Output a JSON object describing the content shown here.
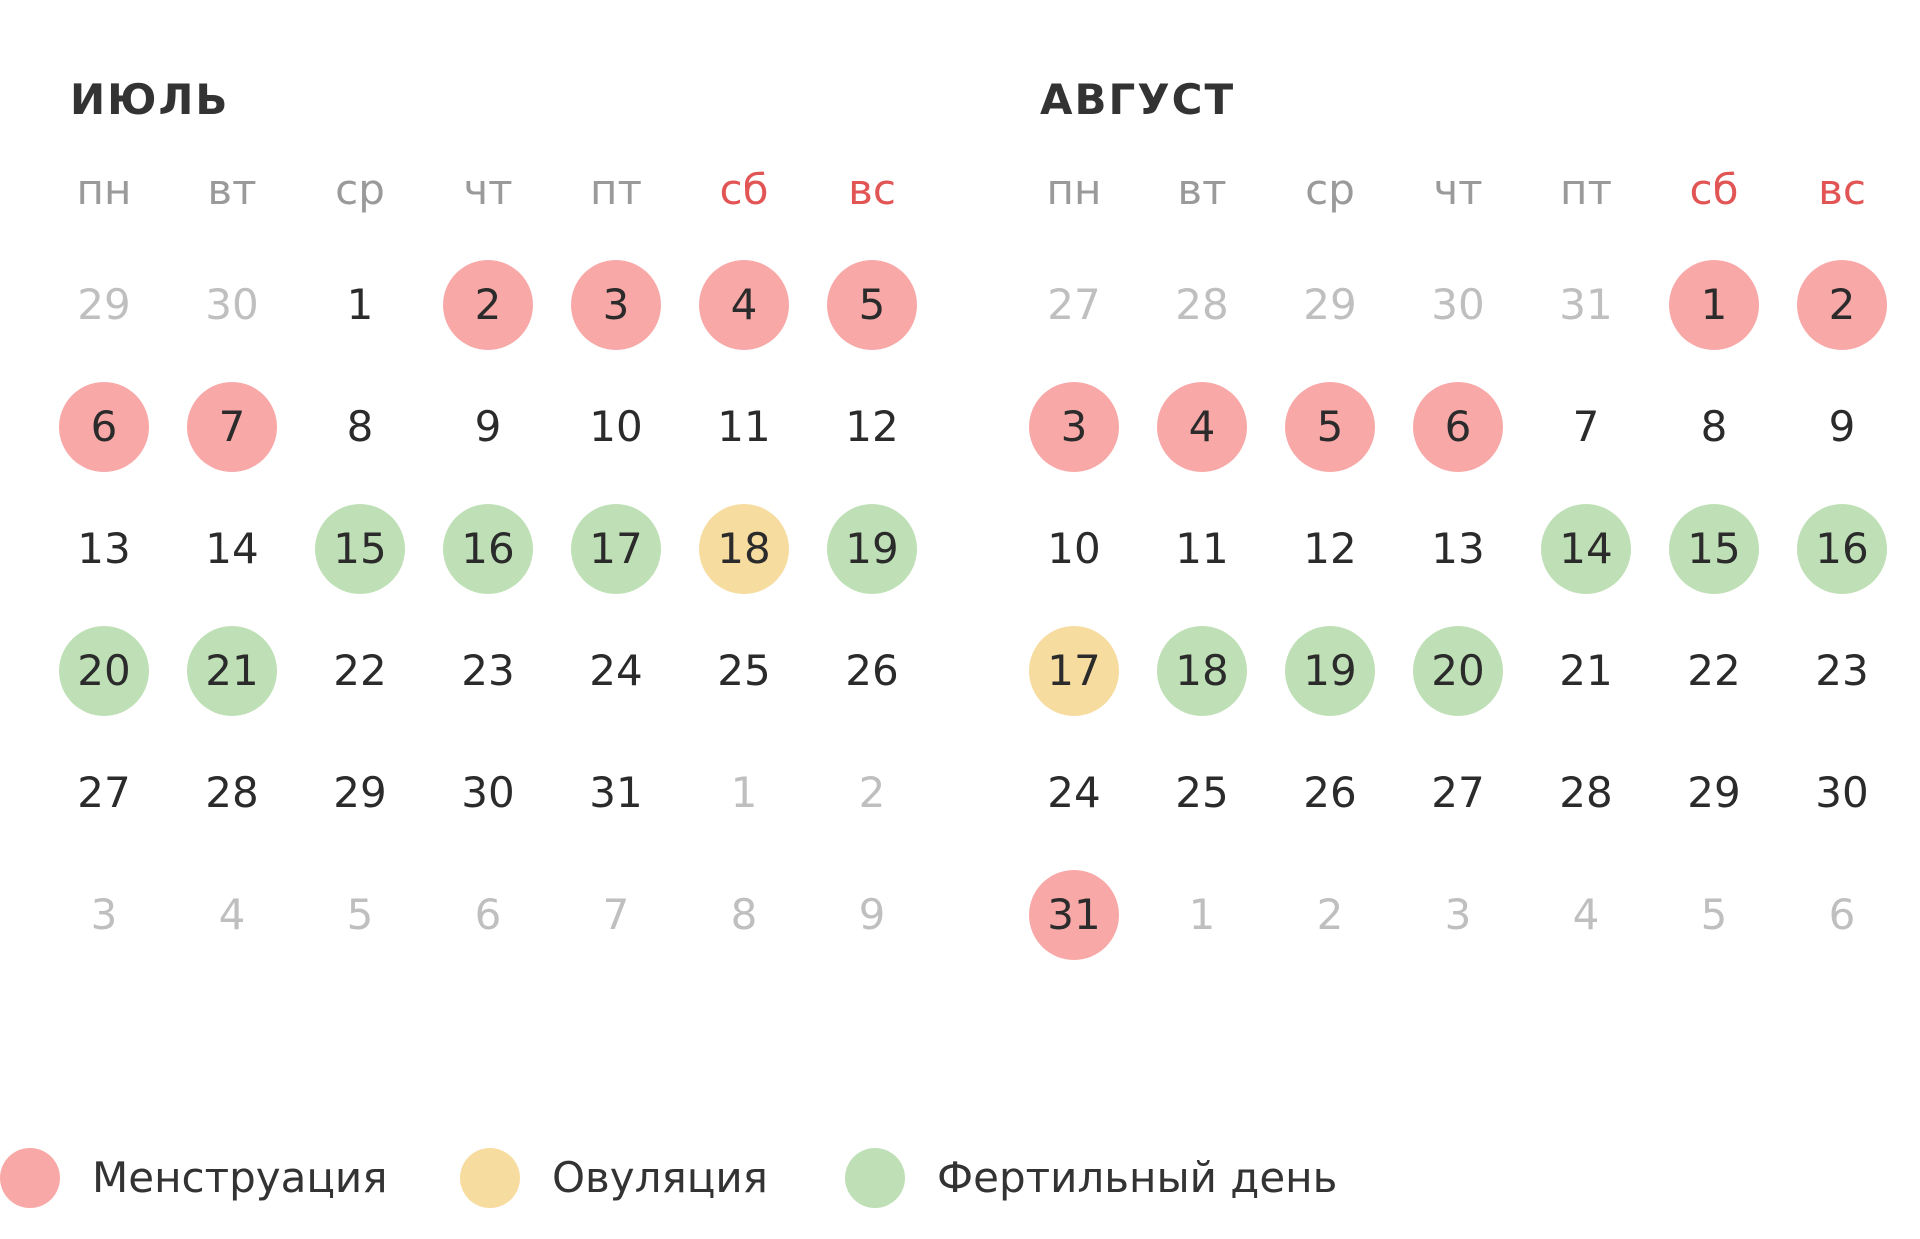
{
  "months": [
    {
      "title": "июль",
      "weekdays": [
        "пн",
        "вт",
        "ср",
        "чт",
        "пт",
        "сб",
        "вс"
      ],
      "weeks": [
        [
          {
            "d": "29",
            "t": "other"
          },
          {
            "d": "30",
            "t": "other"
          },
          {
            "d": "1",
            "t": "normal"
          },
          {
            "d": "2",
            "t": "menstruation"
          },
          {
            "d": "3",
            "t": "menstruation"
          },
          {
            "d": "4",
            "t": "menstruation"
          },
          {
            "d": "5",
            "t": "menstruation"
          }
        ],
        [
          {
            "d": "6",
            "t": "menstruation"
          },
          {
            "d": "7",
            "t": "menstruation"
          },
          {
            "d": "8",
            "t": "normal"
          },
          {
            "d": "9",
            "t": "normal"
          },
          {
            "d": "10",
            "t": "normal"
          },
          {
            "d": "11",
            "t": "normal"
          },
          {
            "d": "12",
            "t": "normal"
          }
        ],
        [
          {
            "d": "13",
            "t": "normal"
          },
          {
            "d": "14",
            "t": "normal"
          },
          {
            "d": "15",
            "t": "fertile"
          },
          {
            "d": "16",
            "t": "fertile"
          },
          {
            "d": "17",
            "t": "fertile"
          },
          {
            "d": "18",
            "t": "ovulation"
          },
          {
            "d": "19",
            "t": "fertile"
          }
        ],
        [
          {
            "d": "20",
            "t": "fertile"
          },
          {
            "d": "21",
            "t": "fertile"
          },
          {
            "d": "22",
            "t": "normal"
          },
          {
            "d": "23",
            "t": "normal"
          },
          {
            "d": "24",
            "t": "normal"
          },
          {
            "d": "25",
            "t": "normal"
          },
          {
            "d": "26",
            "t": "normal"
          }
        ],
        [
          {
            "d": "27",
            "t": "normal"
          },
          {
            "d": "28",
            "t": "normal"
          },
          {
            "d": "29",
            "t": "normal"
          },
          {
            "d": "30",
            "t": "normal"
          },
          {
            "d": "31",
            "t": "normal"
          },
          {
            "d": "1",
            "t": "other"
          },
          {
            "d": "2",
            "t": "other"
          }
        ],
        [
          {
            "d": "3",
            "t": "other"
          },
          {
            "d": "4",
            "t": "other"
          },
          {
            "d": "5",
            "t": "other"
          },
          {
            "d": "6",
            "t": "other"
          },
          {
            "d": "7",
            "t": "other"
          },
          {
            "d": "8",
            "t": "other"
          },
          {
            "d": "9",
            "t": "other"
          }
        ]
      ]
    },
    {
      "title": "август",
      "weekdays": [
        "пн",
        "вт",
        "ср",
        "чт",
        "пт",
        "сб",
        "вс"
      ],
      "weeks": [
        [
          {
            "d": "27",
            "t": "other"
          },
          {
            "d": "28",
            "t": "other"
          },
          {
            "d": "29",
            "t": "other"
          },
          {
            "d": "30",
            "t": "other"
          },
          {
            "d": "31",
            "t": "other"
          },
          {
            "d": "1",
            "t": "menstruation"
          },
          {
            "d": "2",
            "t": "menstruation"
          }
        ],
        [
          {
            "d": "3",
            "t": "menstruation"
          },
          {
            "d": "4",
            "t": "menstruation"
          },
          {
            "d": "5",
            "t": "menstruation"
          },
          {
            "d": "6",
            "t": "menstruation"
          },
          {
            "d": "7",
            "t": "normal"
          },
          {
            "d": "8",
            "t": "normal"
          },
          {
            "d": "9",
            "t": "normal"
          }
        ],
        [
          {
            "d": "10",
            "t": "normal"
          },
          {
            "d": "11",
            "t": "normal"
          },
          {
            "d": "12",
            "t": "normal"
          },
          {
            "d": "13",
            "t": "normal"
          },
          {
            "d": "14",
            "t": "fertile"
          },
          {
            "d": "15",
            "t": "fertile"
          },
          {
            "d": "16",
            "t": "fertile"
          }
        ],
        [
          {
            "d": "17",
            "t": "ovulation"
          },
          {
            "d": "18",
            "t": "fertile"
          },
          {
            "d": "19",
            "t": "fertile"
          },
          {
            "d": "20",
            "t": "fertile"
          },
          {
            "d": "21",
            "t": "normal"
          },
          {
            "d": "22",
            "t": "normal"
          },
          {
            "d": "23",
            "t": "normal"
          }
        ],
        [
          {
            "d": "24",
            "t": "normal"
          },
          {
            "d": "25",
            "t": "normal"
          },
          {
            "d": "26",
            "t": "normal"
          },
          {
            "d": "27",
            "t": "normal"
          },
          {
            "d": "28",
            "t": "normal"
          },
          {
            "d": "29",
            "t": "normal"
          },
          {
            "d": "30",
            "t": "normal"
          }
        ],
        [
          {
            "d": "31",
            "t": "menstruation"
          },
          {
            "d": "1",
            "t": "other"
          },
          {
            "d": "2",
            "t": "other"
          },
          {
            "d": "3",
            "t": "other"
          },
          {
            "d": "4",
            "t": "other"
          },
          {
            "d": "5",
            "t": "other"
          },
          {
            "d": "6",
            "t": "other"
          }
        ]
      ]
    }
  ],
  "legend": [
    {
      "key": "menstruation",
      "label": "Менструация",
      "color": "#f9a8a8"
    },
    {
      "key": "ovulation",
      "label": "Овуляция",
      "color": "#f7dca0"
    },
    {
      "key": "fertile",
      "label": "Фертильный день",
      "color": "#bfe0b6"
    }
  ],
  "colors": {
    "menstruation": "#f9a8a8",
    "ovulation": "#f7dca0",
    "fertile": "#bfe0b6",
    "weekend_label": "#e25555",
    "other_month_day": "#bfbfbf"
  }
}
